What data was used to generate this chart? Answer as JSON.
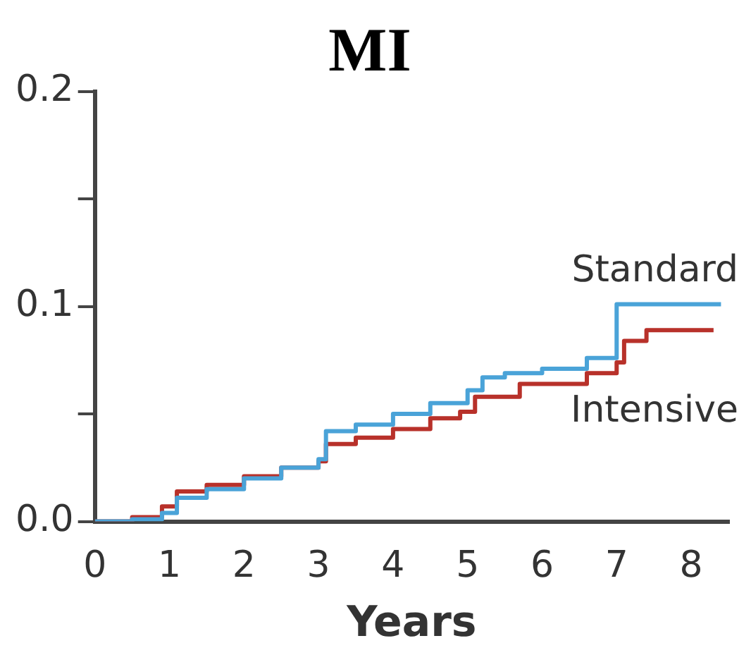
{
  "chart_data": {
    "type": "step",
    "title": "MI",
    "xlabel": "Years",
    "xlim": [
      0,
      8.5
    ],
    "xticks": [
      0,
      1,
      2,
      3,
      4,
      5,
      6,
      7,
      8
    ],
    "ylim": [
      0,
      0.2
    ],
    "yticks": [
      {
        "value": 0,
        "label": "0.0"
      },
      {
        "value": 0.05,
        "label": null
      },
      {
        "value": 0.1,
        "label": "0.1"
      },
      {
        "value": 0.15,
        "label": null
      },
      {
        "value": 0.2,
        "label": "0.2"
      }
    ],
    "legend": false,
    "grid": false,
    "marker": "none",
    "line_style": "solid",
    "series": [
      {
        "name": "Standard",
        "color": "#4aa3d8",
        "x": [
          0,
          0.5,
          0.9,
          1.1,
          1.5,
          2,
          2.5,
          3,
          3.1,
          3.5,
          4,
          4.5,
          5,
          5.2,
          5.5,
          6,
          6.6,
          7,
          8.4
        ],
        "values": [
          0,
          0.001,
          0.004,
          0.011,
          0.015,
          0.02,
          0.025,
          0.029,
          0.042,
          0.045,
          0.05,
          0.055,
          0.061,
          0.067,
          0.069,
          0.071,
          0.076,
          0.101,
          0.101
        ]
      },
      {
        "name": "Intensive",
        "color": "#b8312a",
        "x": [
          0,
          0.5,
          0.9,
          1.1,
          1.5,
          2,
          2.5,
          3,
          3.1,
          3.5,
          4,
          4.5,
          4.9,
          5.1,
          5.7,
          6.6,
          7,
          7.1,
          7.4,
          8.3
        ],
        "values": [
          0,
          0.002,
          0.007,
          0.014,
          0.017,
          0.021,
          0.025,
          0.028,
          0.036,
          0.039,
          0.043,
          0.048,
          0.051,
          0.058,
          0.064,
          0.069,
          0.074,
          0.084,
          0.089,
          0.089
        ]
      }
    ]
  }
}
